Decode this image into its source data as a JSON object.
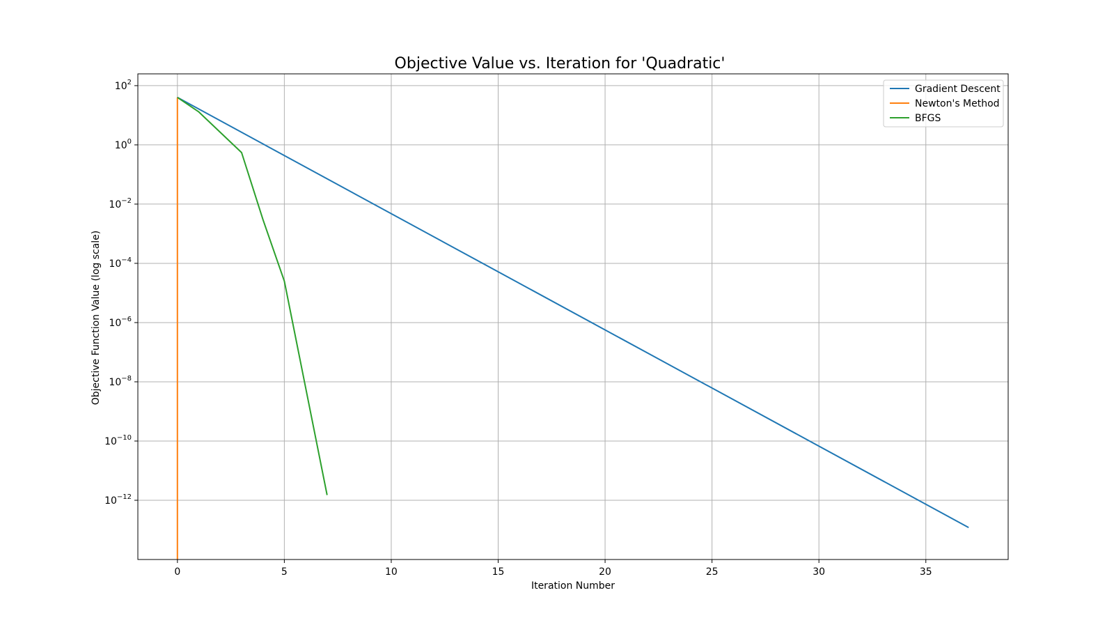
{
  "chart_data": {
    "type": "line",
    "title": "Objective Value vs. Iteration for 'Quadratic'",
    "xlabel": "Iteration Number",
    "ylabel": "Objective Function Value (log scale)",
    "xlim": [
      -1.85,
      38.85
    ],
    "ylim": [
      1e-14,
      250
    ],
    "yscale": "log",
    "grid": true,
    "legend_position": "top-right",
    "xticks": [
      0,
      5,
      10,
      15,
      20,
      25,
      30,
      35
    ],
    "yticks": [
      {
        "value": 100,
        "base": "10",
        "exp": "2"
      },
      {
        "value": 1,
        "base": "10",
        "exp": "0"
      },
      {
        "value": 0.01,
        "base": "10",
        "exp": "−2"
      },
      {
        "value": 0.0001,
        "base": "10",
        "exp": "−4"
      },
      {
        "value": 1e-06,
        "base": "10",
        "exp": "−6"
      },
      {
        "value": 1e-08,
        "base": "10",
        "exp": "−8"
      },
      {
        "value": 1e-10,
        "base": "10",
        "exp": "−10"
      },
      {
        "value": 1e-12,
        "base": "10",
        "exp": "−12"
      }
    ],
    "series": [
      {
        "name": "Gradient Descent",
        "color": "#1f77b4",
        "x": [
          0,
          37
        ],
        "y": [
          40,
          1.2e-13
        ]
      },
      {
        "name": "Newton's Method",
        "color": "#ff7f0e",
        "x": [
          0,
          0
        ],
        "y": [
          40,
          1e-14
        ]
      },
      {
        "name": "BFGS",
        "color": "#2ca02c",
        "x": [
          0,
          1,
          3,
          4,
          5,
          7
        ],
        "y": [
          40,
          13,
          0.55,
          0.003,
          2.5e-05,
          1.5e-12
        ]
      }
    ]
  }
}
